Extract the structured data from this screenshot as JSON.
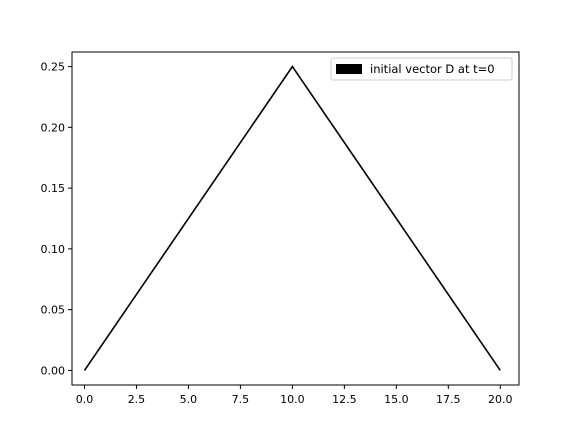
{
  "chart_data": {
    "type": "line",
    "title": "",
    "xlabel": "",
    "ylabel": "",
    "x": [
      0,
      10,
      20
    ],
    "series": [
      {
        "name": "initial vector D at t=0",
        "values": [
          0.0,
          0.25,
          0.0
        ],
        "color": "#000000"
      }
    ],
    "xlim": [
      -0.6,
      20.9
    ],
    "ylim": [
      -0.012,
      0.262
    ],
    "xticks": [
      0.0,
      2.5,
      5.0,
      7.5,
      10.0,
      12.5,
      15.0,
      17.5,
      20.0
    ],
    "xtick_labels": [
      "0.0",
      "2.5",
      "5.0",
      "7.5",
      "10.0",
      "12.5",
      "15.0",
      "17.5",
      "20.0"
    ],
    "yticks": [
      0.0,
      0.05,
      0.1,
      0.15,
      0.2,
      0.25
    ],
    "ytick_labels": [
      "0.00",
      "0.05",
      "0.10",
      "0.15",
      "0.20",
      "0.25"
    ],
    "grid": false,
    "legend_position": "top-right"
  }
}
